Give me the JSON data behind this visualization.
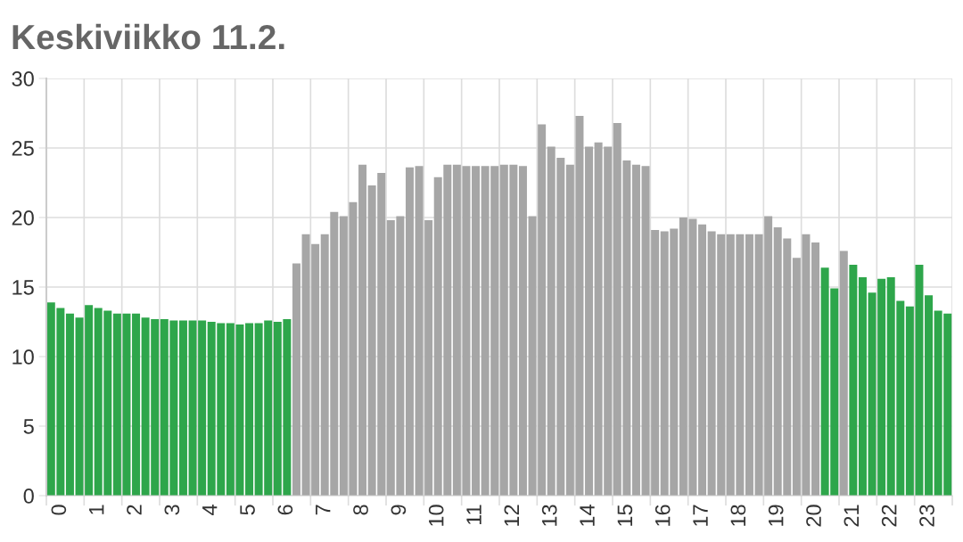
{
  "chart_data": {
    "type": "bar",
    "title": "Keskiviikko 11.2.",
    "categories": [
      null,
      "0",
      null,
      null,
      null,
      "1",
      null,
      null,
      null,
      "2",
      null,
      null,
      null,
      "3",
      null,
      null,
      null,
      "4",
      null,
      null,
      null,
      "5",
      null,
      null,
      null,
      "6",
      null,
      null,
      null,
      "7",
      null,
      null,
      null,
      "8",
      null,
      null,
      null,
      "9",
      null,
      null,
      null,
      "10",
      null,
      null,
      null,
      "11",
      null,
      null,
      null,
      "12",
      null,
      null,
      null,
      "13",
      null,
      null,
      null,
      "14",
      null,
      null,
      null,
      "15",
      null,
      null,
      null,
      "16",
      null,
      null,
      null,
      "17",
      null,
      null,
      null,
      "18",
      null,
      null,
      null,
      "19",
      null,
      null,
      null,
      "20",
      null,
      null,
      null,
      "21",
      null,
      null,
      null,
      "22",
      null,
      null,
      null,
      "23",
      null,
      null
    ],
    "values": [
      13.9,
      13.5,
      13.1,
      12.8,
      13.7,
      13.5,
      13.3,
      13.1,
      13.1,
      13.1,
      12.8,
      12.7,
      12.7,
      12.6,
      12.6,
      12.6,
      12.6,
      12.5,
      12.4,
      12.4,
      12.3,
      12.4,
      12.4,
      12.6,
      12.5,
      12.7,
      16.7,
      18.8,
      18.1,
      18.8,
      20.4,
      20.1,
      21.1,
      23.8,
      22.3,
      23.2,
      19.8,
      20.1,
      23.6,
      23.7,
      19.8,
      22.9,
      23.8,
      23.8,
      23.7,
      23.7,
      23.7,
      23.7,
      23.8,
      23.8,
      23.7,
      20.1,
      26.7,
      25.1,
      24.3,
      23.8,
      27.3,
      25.1,
      25.4,
      25.1,
      26.8,
      24.1,
      23.8,
      23.7,
      19.1,
      19.0,
      19.2,
      20.0,
      19.9,
      19.5,
      19.0,
      18.8,
      18.8,
      18.8,
      18.8,
      18.8,
      20.1,
      19.3,
      18.5,
      17.1,
      18.8,
      18.2,
      16.4,
      14.9,
      17.6,
      16.6,
      15.7,
      14.6,
      15.6,
      15.7,
      14.0,
      13.6,
      16.6,
      14.4,
      13.3,
      13.1
    ],
    "colors": [
      "#2ea64b",
      "#2ea64b",
      "#2ea64b",
      "#2ea64b",
      "#2ea64b",
      "#2ea64b",
      "#2ea64b",
      "#2ea64b",
      "#2ea64b",
      "#2ea64b",
      "#2ea64b",
      "#2ea64b",
      "#2ea64b",
      "#2ea64b",
      "#2ea64b",
      "#2ea64b",
      "#2ea64b",
      "#2ea64b",
      "#2ea64b",
      "#2ea64b",
      "#2ea64b",
      "#2ea64b",
      "#2ea64b",
      "#2ea64b",
      "#2ea64b",
      "#2ea64b",
      "#a6a6a6",
      "#a6a6a6",
      "#a6a6a6",
      "#a6a6a6",
      "#a6a6a6",
      "#a6a6a6",
      "#a6a6a6",
      "#a6a6a6",
      "#a6a6a6",
      "#a6a6a6",
      "#a6a6a6",
      "#a6a6a6",
      "#a6a6a6",
      "#a6a6a6",
      "#a6a6a6",
      "#a6a6a6",
      "#a6a6a6",
      "#a6a6a6",
      "#a6a6a6",
      "#a6a6a6",
      "#a6a6a6",
      "#a6a6a6",
      "#a6a6a6",
      "#a6a6a6",
      "#a6a6a6",
      "#a6a6a6",
      "#a6a6a6",
      "#a6a6a6",
      "#a6a6a6",
      "#a6a6a6",
      "#a6a6a6",
      "#a6a6a6",
      "#a6a6a6",
      "#a6a6a6",
      "#a6a6a6",
      "#a6a6a6",
      "#a6a6a6",
      "#a6a6a6",
      "#a6a6a6",
      "#a6a6a6",
      "#a6a6a6",
      "#a6a6a6",
      "#a6a6a6",
      "#a6a6a6",
      "#a6a6a6",
      "#a6a6a6",
      "#a6a6a6",
      "#a6a6a6",
      "#a6a6a6",
      "#a6a6a6",
      "#a6a6a6",
      "#a6a6a6",
      "#a6a6a6",
      "#a6a6a6",
      "#a6a6a6",
      "#a6a6a6",
      "#2ea64b",
      "#2ea64b",
      "#a6a6a6",
      "#2ea64b",
      "#2ea64b",
      "#2ea64b",
      "#2ea64b",
      "#2ea64b",
      "#2ea64b",
      "#2ea64b",
      "#2ea64b",
      "#2ea64b",
      "#2ea64b",
      "#2ea64b"
    ],
    "ylim": [
      0,
      30
    ],
    "yticks": [
      0,
      5,
      10,
      15,
      20,
      25,
      30
    ],
    "grid": true
  }
}
